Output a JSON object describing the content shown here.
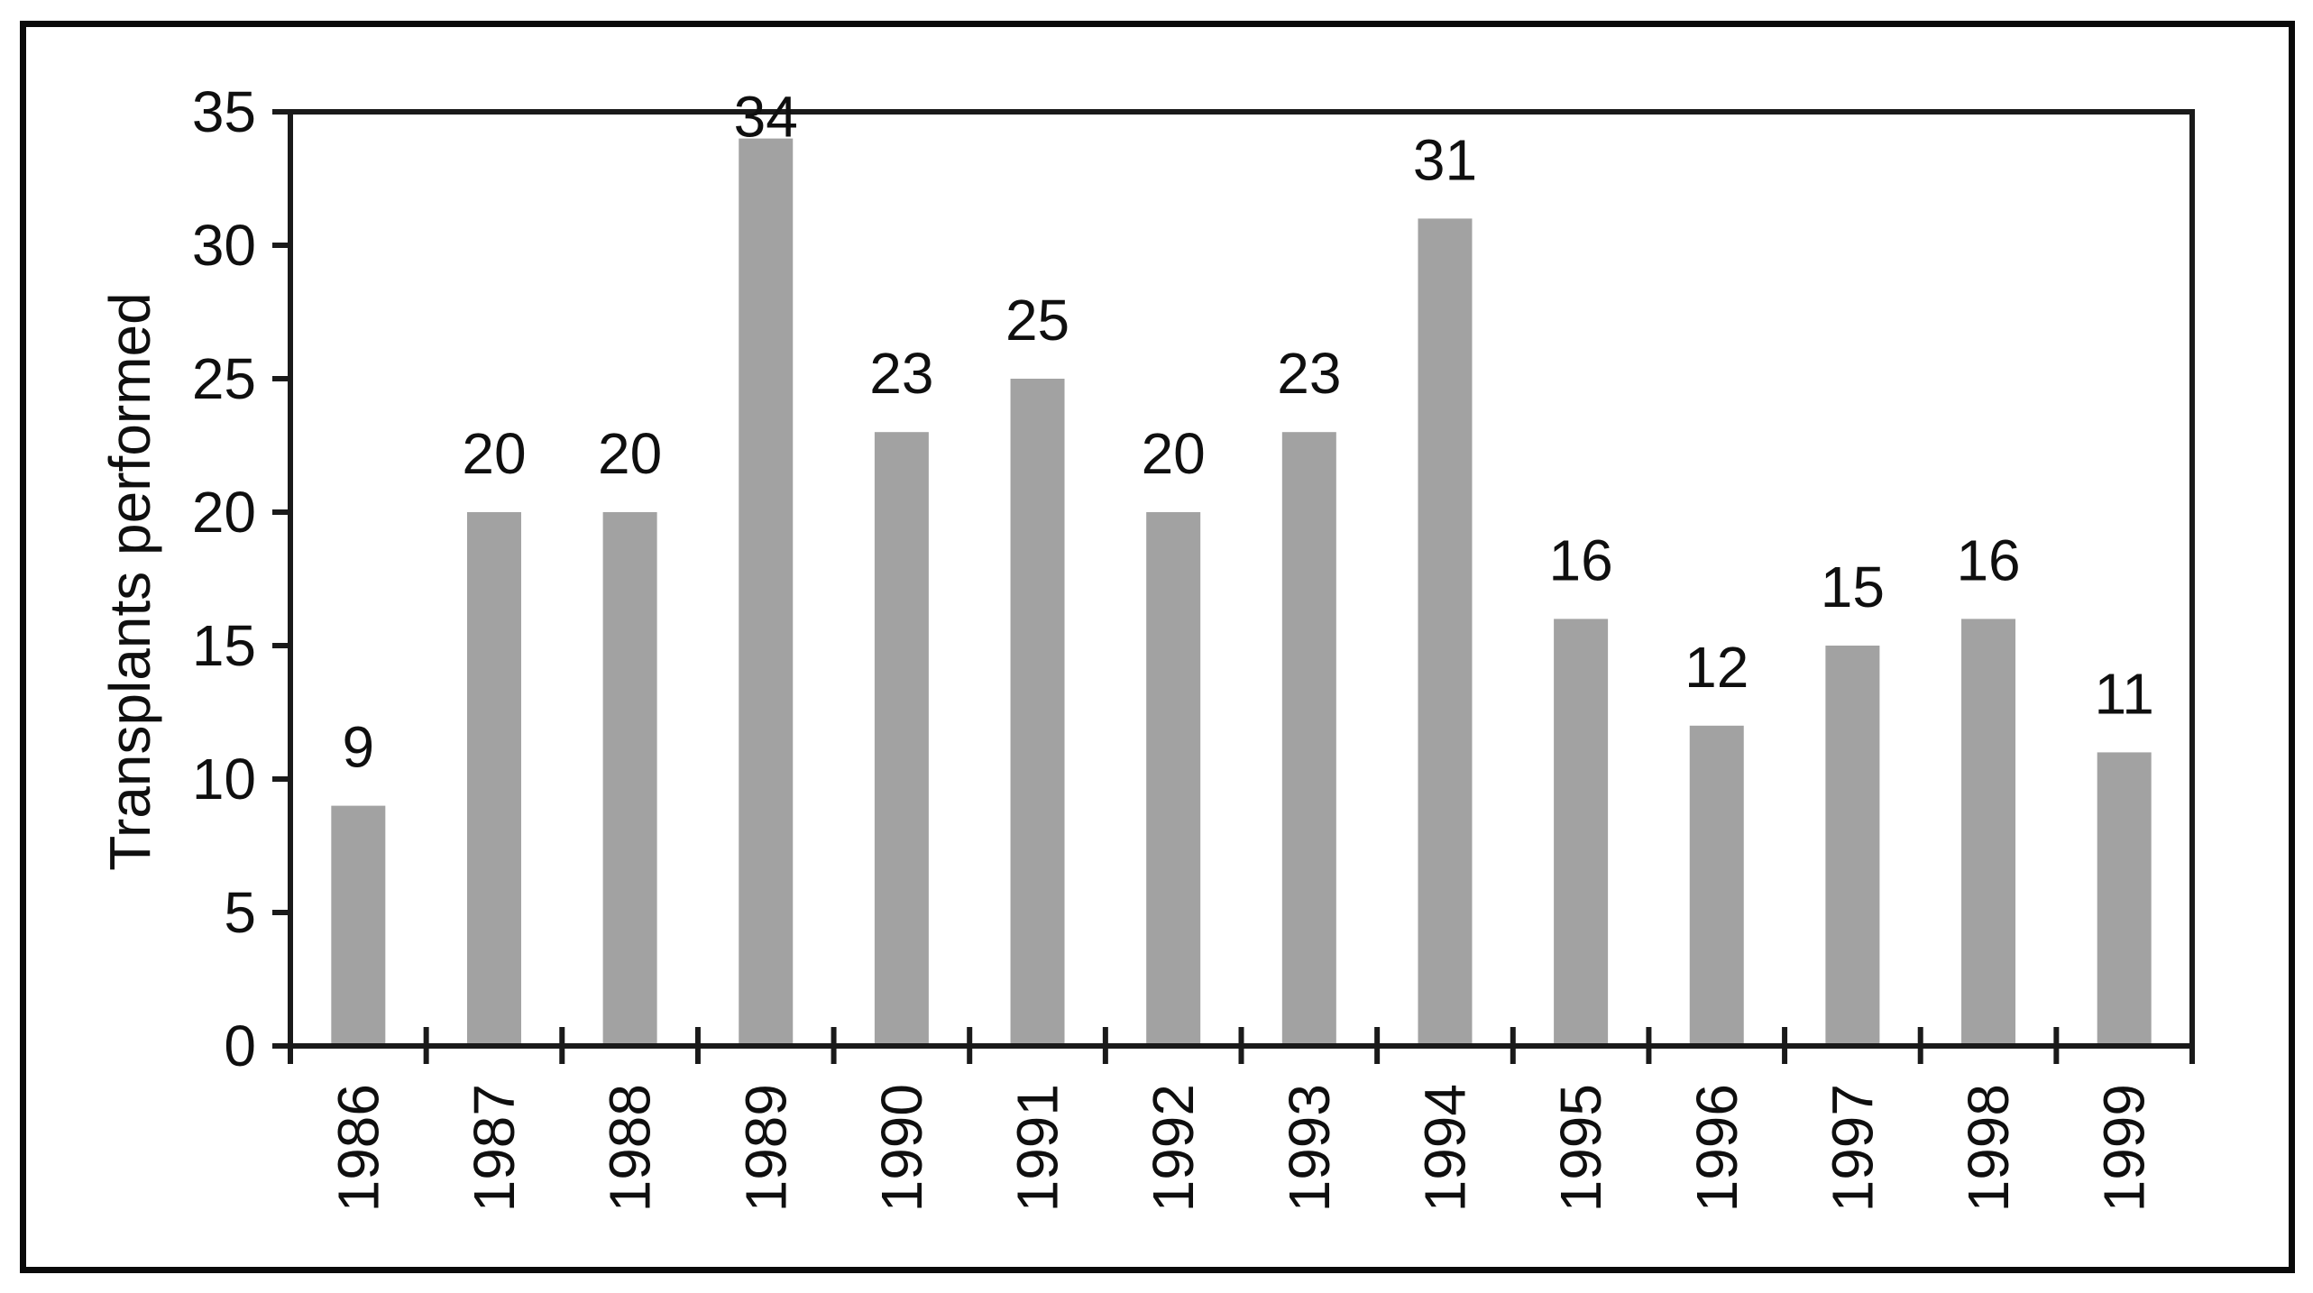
{
  "chart_data": {
    "type": "bar",
    "title": "",
    "xlabel": "",
    "ylabel": "Transplants performed",
    "categories": [
      "1986",
      "1987",
      "1988",
      "1989",
      "1990",
      "1991",
      "1992",
      "1993",
      "1994",
      "1995",
      "1996",
      "1997",
      "1998",
      "1999"
    ],
    "values": [
      9,
      20,
      20,
      34,
      23,
      25,
      20,
      23,
      31,
      16,
      12,
      15,
      16,
      11
    ],
    "bar_value_labels": [
      "9",
      "20",
      "20",
      "34",
      "23",
      "25",
      "20",
      "23",
      "31",
      "16",
      "12",
      "15",
      "16",
      "11"
    ],
    "ylim": [
      0,
      35
    ],
    "ytick_step": 5,
    "ytick_labels": [
      "0",
      "5",
      "10",
      "15",
      "20",
      "25",
      "30",
      "35"
    ],
    "x_tick_label_rotation_deg": 90,
    "grid": false,
    "legend": null,
    "bar_color": "#a2a2a2",
    "axis_color": "#1a1a1a",
    "text_color": "#0f0f0f",
    "figure_border_color": "#0a0a0a",
    "background_color": "#ffffff"
  }
}
